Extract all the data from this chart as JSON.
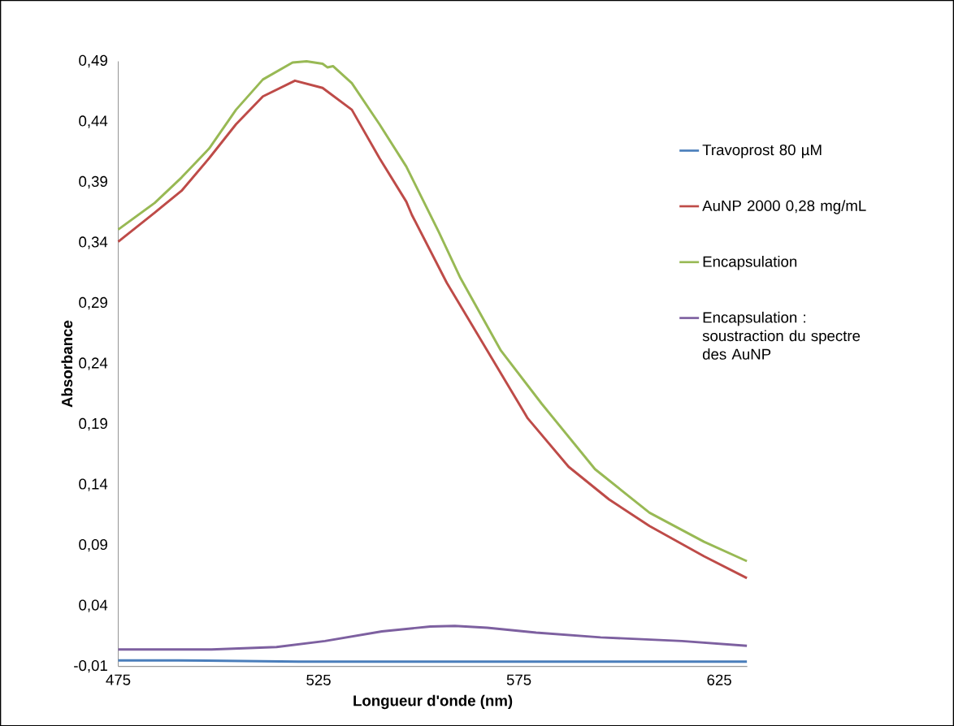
{
  "chart_data": {
    "type": "line",
    "xlabel": "Longueur d'onde (nm)",
    "ylabel": "Absorbance",
    "xlim": [
      475,
      632
    ],
    "xticks": [
      475,
      525,
      575,
      625
    ],
    "ylim": [
      -0.01,
      0.49
    ],
    "yticks": [
      {
        "value": -0.01,
        "label": "-0,01"
      },
      {
        "value": 0.04,
        "label": "0,04"
      },
      {
        "value": 0.09,
        "label": "0,09"
      },
      {
        "value": 0.14,
        "label": "0,14"
      },
      {
        "value": 0.19,
        "label": "0,19"
      },
      {
        "value": 0.24,
        "label": "0,24"
      },
      {
        "value": 0.29,
        "label": "0,29"
      },
      {
        "value": 0.34,
        "label": "0,34"
      },
      {
        "value": 0.39,
        "label": "0,39"
      },
      {
        "value": 0.44,
        "label": "0,44"
      },
      {
        "value": 0.49,
        "label": "0,49"
      }
    ],
    "grid": false,
    "legend": "right",
    "marker": "none",
    "line_style": "solid",
    "series": [
      {
        "name": "Travoprost 80 µM",
        "color": "#4a7ebb",
        "x": [
          475,
          490,
          520,
          550,
          580,
          610,
          631.9
        ],
        "values": [
          -0.005,
          -0.005,
          -0.006,
          -0.006,
          -0.006,
          -0.006,
          -0.006
        ]
      },
      {
        "name": "AuNP 2000 0,28 mg/mL",
        "color": "#be4b48",
        "x": [
          475,
          484.1,
          490.8,
          497.7,
          504.4,
          511.1,
          519.1,
          526.0,
          533.3,
          540.2,
          546.9,
          548.3,
          557.0,
          567.1,
          577.2,
          587.4,
          597.5,
          607.6,
          621.2,
          631.9
        ],
        "values": [
          0.341,
          0.365,
          0.383,
          0.41,
          0.438,
          0.461,
          0.474,
          0.468,
          0.45,
          0.41,
          0.374,
          0.363,
          0.307,
          0.251,
          0.195,
          0.155,
          0.128,
          0.106,
          0.081,
          0.063
        ]
      },
      {
        "name": "Encapsulation",
        "color": "#98b954",
        "x": [
          475,
          484.1,
          490.8,
          497.7,
          504.4,
          511.1,
          518.5,
          522.0,
          526.0,
          527.2,
          528.6,
          533.3,
          540.2,
          546.9,
          555.0,
          560.4,
          570.5,
          580.7,
          594.0,
          607.6,
          621.2,
          631.9
        ],
        "values": [
          0.351,
          0.373,
          0.394,
          0.418,
          0.45,
          0.475,
          0.489,
          0.49,
          0.488,
          0.485,
          0.486,
          0.472,
          0.438,
          0.403,
          0.349,
          0.311,
          0.251,
          0.207,
          0.153,
          0.117,
          0.093,
          0.077
        ]
      },
      {
        "name": "Encapsulation : soustraction du spectre des AuNP",
        "color": "#7d60a0",
        "x": [
          475,
          498.3,
          514.5,
          526.6,
          540.8,
          552.9,
          559.0,
          567.1,
          579.3,
          595.4,
          615.7,
          631.9
        ],
        "values": [
          0.004,
          0.004,
          0.006,
          0.011,
          0.019,
          0.023,
          0.0235,
          0.022,
          0.018,
          0.014,
          0.011,
          0.007
        ]
      }
    ]
  }
}
